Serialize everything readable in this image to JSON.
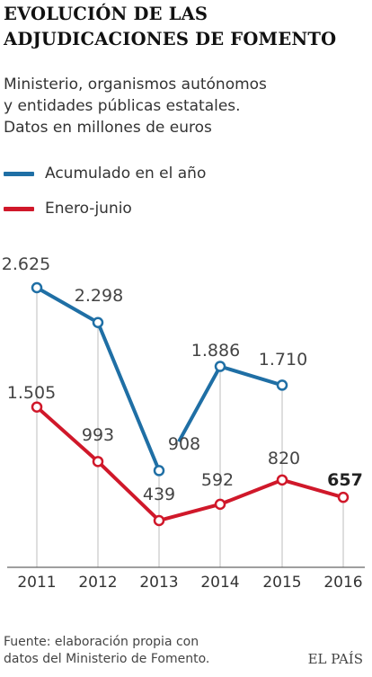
{
  "title": {
    "line1": "EVOLUCIÓN DE LAS",
    "line2": "ADJUDICACIONES DE FOMENTO"
  },
  "subtitle": {
    "line1": "Ministerio, organismos autónomos",
    "line2": "y entidades públicas estatales.",
    "line3": "Datos en millones de euros"
  },
  "legend": {
    "items": [
      {
        "label": "Acumulado en el año",
        "color": "#1f6fa5"
      },
      {
        "label": "Enero-junio",
        "color": "#d0182a"
      }
    ]
  },
  "footer": {
    "line1": "Fuente: elaboración propia con",
    "line2": "datos del Ministerio de Fomento.",
    "brand": "EL PAÍS"
  },
  "chart_data": {
    "type": "line",
    "categories": [
      "2011",
      "2012",
      "2013",
      "2014",
      "2015",
      "2016"
    ],
    "series": [
      {
        "name": "Acumulado en el año",
        "color": "#1f6fa5",
        "values": [
          2625,
          2298,
          908,
          1886,
          1710,
          null
        ],
        "labels": [
          "2.625",
          "2.298",
          "908",
          "1.886",
          "1.710",
          ""
        ]
      },
      {
        "name": "Enero-junio",
        "color": "#d0182a",
        "values": [
          1505,
          993,
          439,
          592,
          820,
          657
        ],
        "labels": [
          "1.505",
          "993",
          "439",
          "592",
          "820",
          "657"
        ]
      }
    ],
    "ylim": [
      0,
      2800
    ],
    "grid": false,
    "xlabel": "",
    "ylabel": ""
  }
}
